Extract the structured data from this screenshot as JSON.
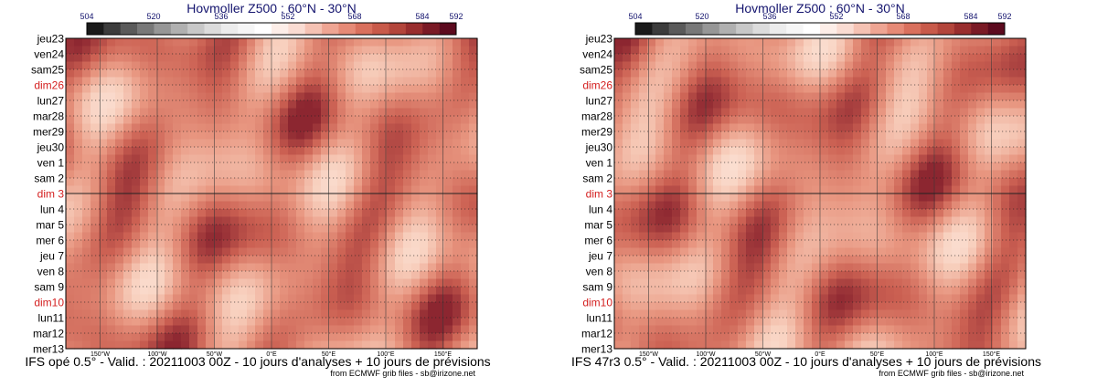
{
  "panels": [
    {
      "title": "Hovmoller Z500 : 60°N - 30°N",
      "footer": "IFS opé 0.5° - Valid. : 20211003 00Z - 10 jours d'analyses + 10 jours de prévisions",
      "credit": "from ECMWF grib files - sb@irizone.net"
    },
    {
      "title": "Hovmoller Z500 : 60°N - 30°N",
      "footer": "IFS 47r3 0.5° - Valid. : 20211003 00Z - 10 jours d'analyses + 10 jours de prévisions",
      "credit": "from ECMWF grib files - sb@irizone.net"
    }
  ],
  "colorbar": {
    "tick_labels": [
      "504",
      "520",
      "536",
      "552",
      "568",
      "584",
      "592"
    ],
    "colors": [
      "#1a1a1a",
      "#3c3c3c",
      "#5a5a5a",
      "#787878",
      "#969696",
      "#b0b0b0",
      "#c8c8c8",
      "#dcdcdc",
      "#ececec",
      "#f6f6f6",
      "#ffffff",
      "#fdeee8",
      "#fadcd2",
      "#f5c2b3",
      "#efa593",
      "#e68a76",
      "#d9705d",
      "#c85a4a",
      "#b3453b",
      "#992e2e",
      "#7a1a25",
      "#5c0a1e"
    ]
  },
  "chart_data": [
    {
      "type": "heatmap",
      "title": "Hovmoller Z500 : 60°N - 30°N",
      "x_ticks": [
        "150°W",
        "100°W",
        "50°W",
        "0°E",
        "50°E",
        "100°E",
        "150°E"
      ],
      "x_values": [
        -150,
        -100,
        -50,
        0,
        50,
        100,
        150
      ],
      "xlim": [
        -180,
        180
      ],
      "y_labels": [
        "jeu23",
        "ven24",
        "sam25",
        "dim26",
        "lun27",
        "mar28",
        "mer29",
        "jeu30",
        "ven 1",
        "sam 2",
        "dim 3",
        "lun 4",
        "mar 5",
        "mer 6",
        "jeu 7",
        "ven 8",
        "sam 9",
        "dim10",
        "lun11",
        "mar12",
        "mer13"
      ],
      "sunday_labels": [
        "dim26",
        "dim 3",
        "dim10"
      ],
      "sunday_color": "#d42020",
      "value_range": [
        504,
        592
      ],
      "grid": true
    },
    {
      "type": "heatmap",
      "title": "Hovmoller Z500 : 60°N - 30°N",
      "x_ticks": [
        "150°W",
        "100°W",
        "50°W",
        "0°E",
        "50°E",
        "100°E",
        "150°E"
      ],
      "x_values": [
        -150,
        -100,
        -50,
        0,
        50,
        100,
        150
      ],
      "xlim": [
        -180,
        180
      ],
      "y_labels": [
        "jeu23",
        "ven24",
        "sam25",
        "dim26",
        "lun27",
        "mar28",
        "mer29",
        "jeu30",
        "ven 1",
        "sam 2",
        "dim 3",
        "lun 4",
        "mar 5",
        "mer 6",
        "jeu 7",
        "ven 8",
        "sam 9",
        "dim10",
        "lun11",
        "mar12",
        "mer13"
      ],
      "sunday_labels": [
        "dim26",
        "dim 3",
        "dim10"
      ],
      "sunday_color": "#d42020",
      "value_range": [
        504,
        592
      ],
      "grid": true
    }
  ]
}
